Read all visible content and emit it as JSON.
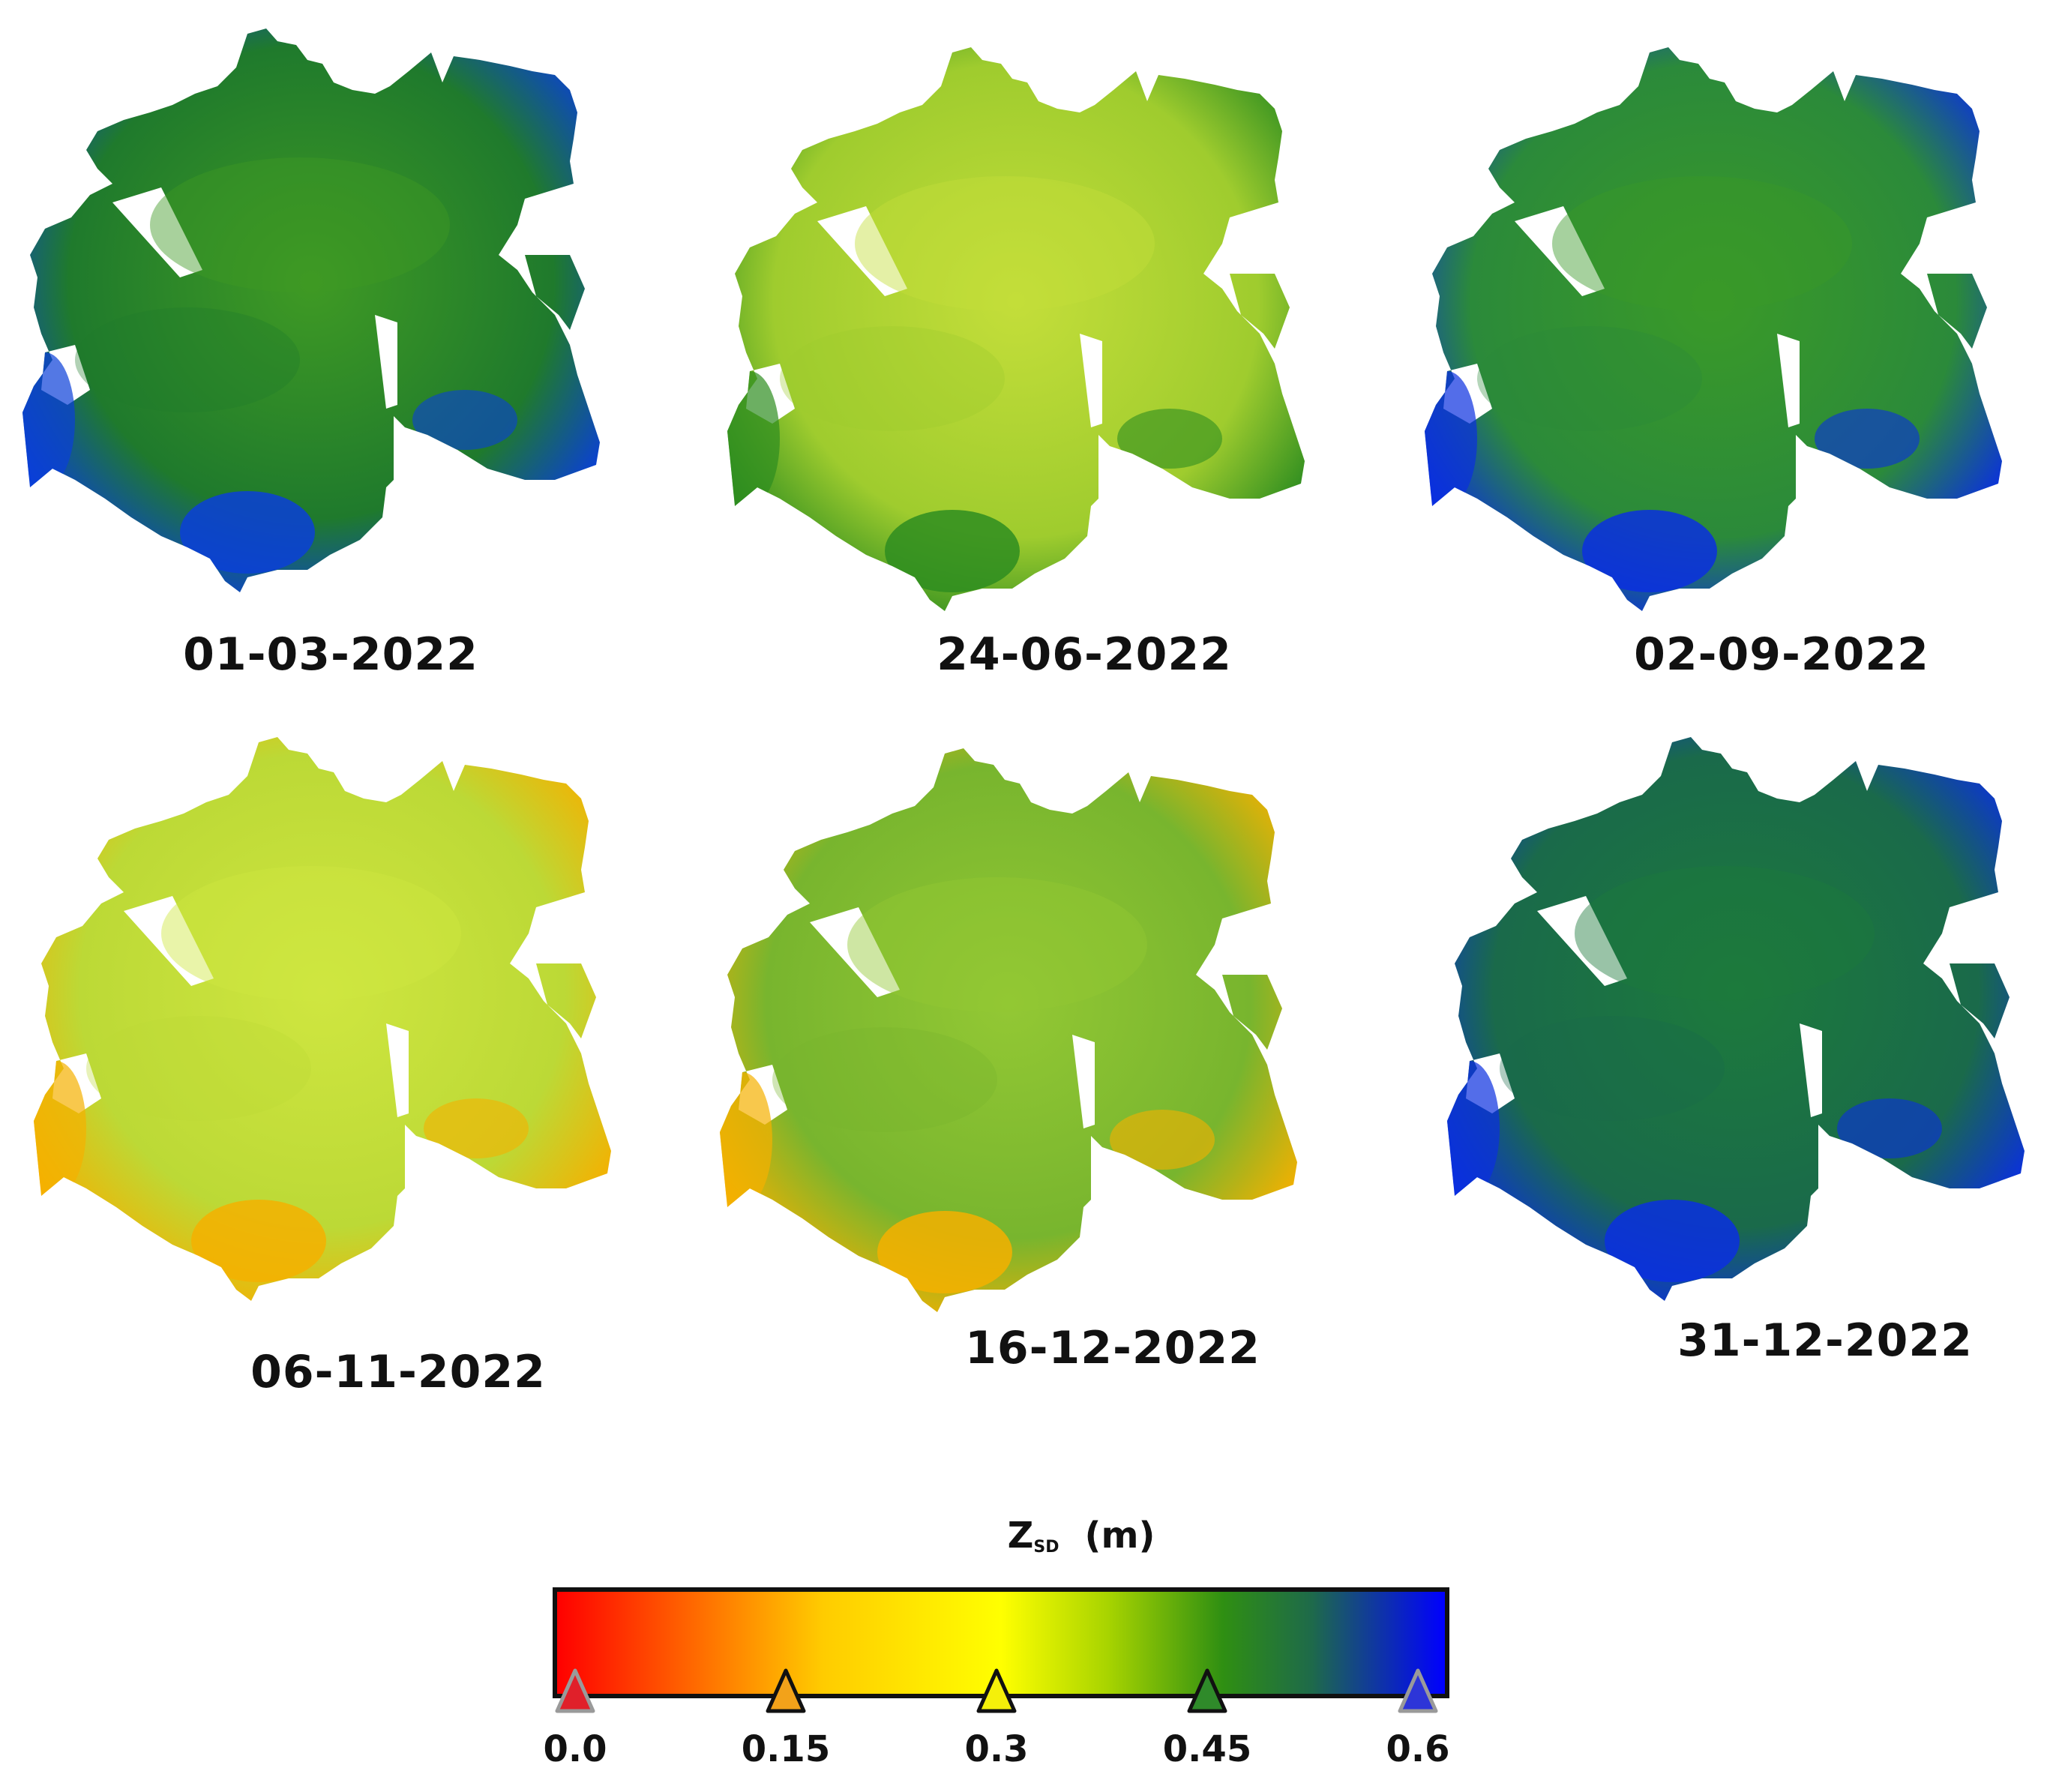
{
  "panels": [
    {
      "date": "01-03-2022",
      "colors": {
        "base": "#3f9a24",
        "accent": "#1f7a2c",
        "edge": "#0a3fd8"
      }
    },
    {
      "date": "24-06-2022",
      "colors": {
        "base": "#c4de3a",
        "accent": "#9fcc2e",
        "edge": "#2e8d20"
      }
    },
    {
      "date": "02-09-2022",
      "colors": {
        "base": "#3a9a28",
        "accent": "#2b8a3a",
        "edge": "#0a2fe0"
      }
    },
    {
      "date": "06-11-2022",
      "colors": {
        "base": "#cfe640",
        "accent": "#bcd936",
        "edge": "#f5b000"
      }
    },
    {
      "date": "16-12-2022",
      "colors": {
        "base": "#93c834",
        "accent": "#78b52e",
        "edge": "#f5b000"
      }
    },
    {
      "date": "31-12-2022",
      "colors": {
        "base": "#1c7a3c",
        "accent": "#1a6a4a",
        "edge": "#0a2fe0"
      }
    }
  ],
  "legend": {
    "variable": "Z",
    "variable_subscript": "SD",
    "unit": "(m)",
    "range": [
      0.0,
      0.6
    ],
    "ticks": [
      {
        "value": 0.0,
        "label": "0.0",
        "color": "#e0202a"
      },
      {
        "value": 0.15,
        "label": "0.15",
        "color": "#f2a21a"
      },
      {
        "value": 0.3,
        "label": "0.3",
        "color": "#f5f00a"
      },
      {
        "value": 0.45,
        "label": "0.45",
        "color": "#2f8a2a"
      },
      {
        "value": 0.6,
        "label": "0.6",
        "color": "#2d35d8"
      }
    ]
  }
}
